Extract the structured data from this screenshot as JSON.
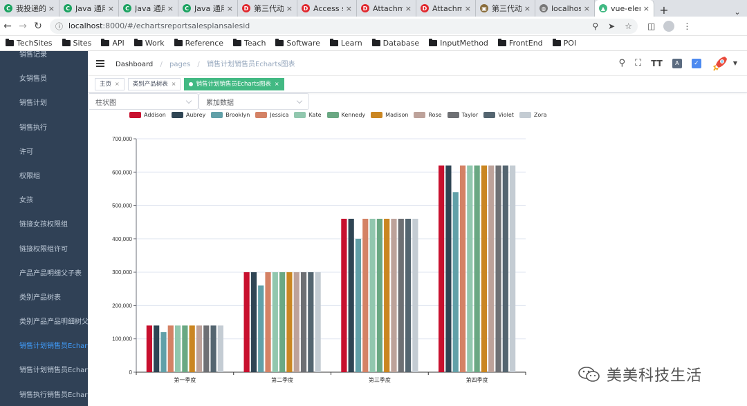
{
  "browser": {
    "tabs": [
      {
        "title": "我投递的",
        "icon": "green-c-icon"
      },
      {
        "title": "Java 通用",
        "icon": "green-c-icon"
      },
      {
        "title": "Java 通用",
        "icon": "green-c-icon"
      },
      {
        "title": "Java 通用",
        "icon": "green-c-icon"
      },
      {
        "title": "第三代动",
        "icon": "red-d-icon"
      },
      {
        "title": "Access st",
        "icon": "red-d-icon"
      },
      {
        "title": "Attachm",
        "icon": "red-d-icon"
      },
      {
        "title": "Attachm",
        "icon": "red-d-icon"
      },
      {
        "title": "第三代动",
        "icon": "image-icon"
      },
      {
        "title": "localhost",
        "icon": "globe-icon"
      },
      {
        "title": "vue-elem",
        "icon": "green-leaf-icon",
        "active": true
      }
    ],
    "url_host": "localhost",
    "url_rest": ":8000/#/echartsreportsalesplansalesid",
    "bookmarks": [
      "TechSites",
      "Sites",
      "API",
      "Work",
      "Reference",
      "Teach",
      "Software",
      "Learn",
      "Database",
      "InputMethod",
      "FrontEnd",
      "POI"
    ]
  },
  "sidebar": {
    "items": [
      {
        "label": "销售记录"
      },
      {
        "label": "女销售员"
      },
      {
        "label": "销售计划"
      },
      {
        "label": "销售执行"
      },
      {
        "label": "许可"
      },
      {
        "label": "权限组"
      },
      {
        "label": "女孩"
      },
      {
        "label": "链接女孩权限组"
      },
      {
        "label": "链接权限组许可"
      },
      {
        "label": "产品产品明细父子表"
      },
      {
        "label": "类别产品树表"
      },
      {
        "label": "类别产品产品明细树父子表"
      },
      {
        "label": "销售计划销售员Echarts图表",
        "active": true
      },
      {
        "label": "销售计划销售员Echarts图表"
      },
      {
        "label": "销售执行销售员Echarts图表"
      }
    ]
  },
  "navbar": {
    "breadcrumb": [
      "Dashboard",
      "pages",
      "销售计划销售员Echarts图表"
    ]
  },
  "tags": [
    {
      "label": "主页"
    },
    {
      "label": "类别产品树表"
    },
    {
      "label": "销售计划销售员Echarts图表",
      "active": true
    }
  ],
  "filters": {
    "chart_type": "柱状图",
    "data_mode": "累加数据"
  },
  "watermark": "美美科技生活",
  "chart_data": {
    "type": "bar",
    "categories": [
      "第一季度",
      "第二季度",
      "第三季度",
      "第四季度"
    ],
    "ylim": [
      0,
      700000
    ],
    "yticks": [
      "0",
      "100,000",
      "200,000",
      "300,000",
      "400,000",
      "500,000",
      "600,000",
      "700,000"
    ],
    "legend_position": "top",
    "grid": true,
    "series": [
      {
        "name": "Addison",
        "color": "#c8102e",
        "values": [
          140000,
          300000,
          460000,
          620000
        ]
      },
      {
        "name": "Aubrey",
        "color": "#2f4554",
        "values": [
          140000,
          300000,
          460000,
          620000
        ]
      },
      {
        "name": "Brooklyn",
        "color": "#61a0a8",
        "values": [
          120000,
          260000,
          400000,
          540000
        ]
      },
      {
        "name": "Jessica",
        "color": "#d48265",
        "values": [
          140000,
          300000,
          460000,
          620000
        ]
      },
      {
        "name": "Kate",
        "color": "#91c7ae",
        "values": [
          140000,
          300000,
          460000,
          620000
        ]
      },
      {
        "name": "Kennedy",
        "color": "#6aa883",
        "values": [
          140000,
          300000,
          460000,
          620000
        ]
      },
      {
        "name": "Madison",
        "color": "#ca8622",
        "values": [
          140000,
          300000,
          460000,
          620000
        ]
      },
      {
        "name": "Rose",
        "color": "#bda29a",
        "values": [
          140000,
          300000,
          460000,
          620000
        ]
      },
      {
        "name": "Taylor",
        "color": "#6e7074",
        "values": [
          140000,
          300000,
          460000,
          620000
        ]
      },
      {
        "name": "Violet",
        "color": "#546570",
        "values": [
          140000,
          300000,
          460000,
          620000
        ]
      },
      {
        "name": "Zora",
        "color": "#c4ccd3",
        "values": [
          140000,
          300000,
          460000,
          620000
        ]
      }
    ]
  }
}
